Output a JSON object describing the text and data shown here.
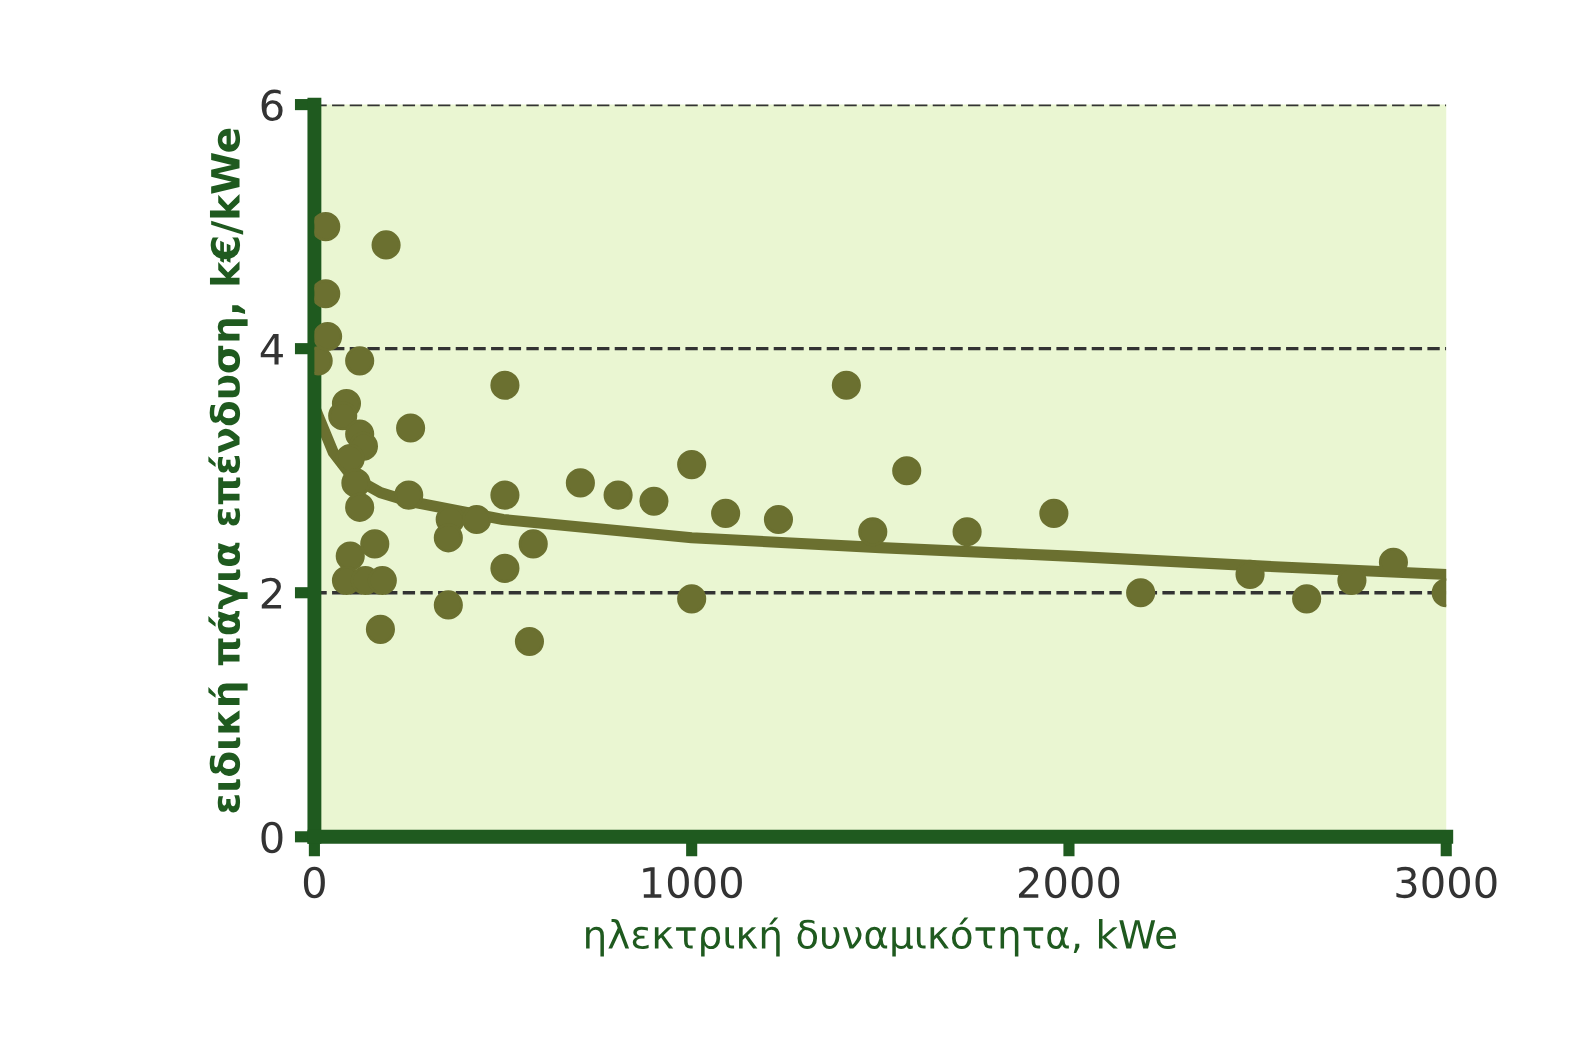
{
  "chart_data": {
    "type": "scatter",
    "xlabel": "ηλεκτρική δυναμικότητα, kWe",
    "ylabel": "ειδική πάγια επένδυση, k€/kWe",
    "xlim": [
      0,
      3000
    ],
    "ylim": [
      0,
      6
    ],
    "xticks": [
      0,
      1000,
      2000,
      3000
    ],
    "yticks": [
      0,
      2,
      4,
      6
    ],
    "grid": "y",
    "series": [
      {
        "color": "#6b7030",
        "marker": "circle",
        "x": [
          10,
          30,
          30,
          35,
          190,
          120,
          85,
          75,
          120,
          130,
          95,
          110,
          120,
          255,
          505,
          250,
          360,
          355,
          430,
          505,
          505,
          580,
          95,
          160,
          85,
          135,
          180,
          175,
          355,
          570,
          705,
          805,
          900,
          1000,
          1000,
          1090,
          1230,
          1410,
          1570,
          1480,
          1730,
          1960,
          2190,
          2480,
          2630,
          2750,
          2860,
          3000
        ],
        "values": [
          3.9,
          5.0,
          4.45,
          4.1,
          4.85,
          3.9,
          3.55,
          3.45,
          3.3,
          3.2,
          3.1,
          2.9,
          2.7,
          3.35,
          3.7,
          2.8,
          2.6,
          2.45,
          2.6,
          2.8,
          2.2,
          2.4,
          2.3,
          2.4,
          2.1,
          2.1,
          2.1,
          1.7,
          1.9,
          1.6,
          2.9,
          2.8,
          2.75,
          3.05,
          1.95,
          2.65,
          2.6,
          3.7,
          3.0,
          2.5,
          2.5,
          2.65,
          2.0,
          2.15,
          1.95,
          2.1,
          2.25,
          2.0
        ]
      },
      {
        "type": "line",
        "color": "#6b7030",
        "x": [
          10,
          50,
          100,
          175,
          250,
          500,
          1000,
          1500,
          2000,
          2500,
          3000
        ],
        "values": [
          3.45,
          3.15,
          2.95,
          2.82,
          2.75,
          2.6,
          2.45,
          2.37,
          2.3,
          2.22,
          2.15
        ]
      }
    ]
  }
}
